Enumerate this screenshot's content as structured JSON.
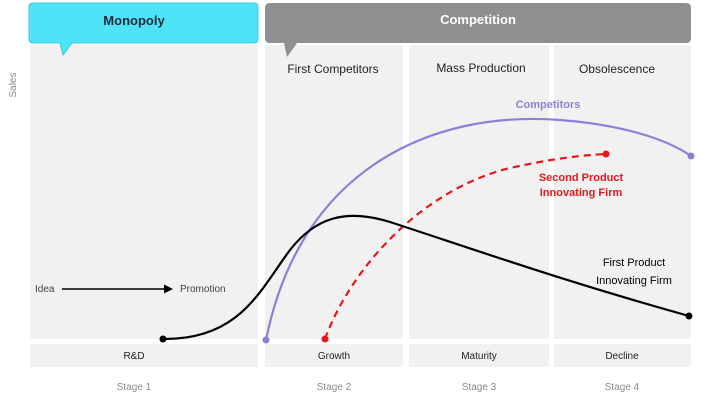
{
  "header": {
    "monopoly_label": "Monopoly",
    "competition_label": "Competition",
    "monopoly_color": "#4fe3f7",
    "competition_color": "#8f8f8f"
  },
  "axis": {
    "ylabel": "Sales"
  },
  "columns": {
    "first_competitors": "First Competitors",
    "mass_production": "Mass Production",
    "obsolescence": "Obsolescence"
  },
  "phases": {
    "rd": "R&D",
    "growth": "Growth",
    "maturity": "Maturity",
    "decline": "Decline"
  },
  "stages": {
    "stage1": "Stage 1",
    "stage2": "Stage 2",
    "stage3": "Stage 3",
    "stage4": "Stage 4"
  },
  "flow": {
    "idea": "Idea",
    "promotion": "Promotion"
  },
  "curves": {
    "competitors": {
      "label": "Competitors",
      "color": "#8e7fd6"
    },
    "second": {
      "label_line1": "Second Product",
      "label_line2": "Innovating Firm",
      "color": "#e8161b"
    },
    "first": {
      "label_line1": "First Product",
      "label_line2": "Innovating Firm",
      "color": "#000000"
    }
  }
}
